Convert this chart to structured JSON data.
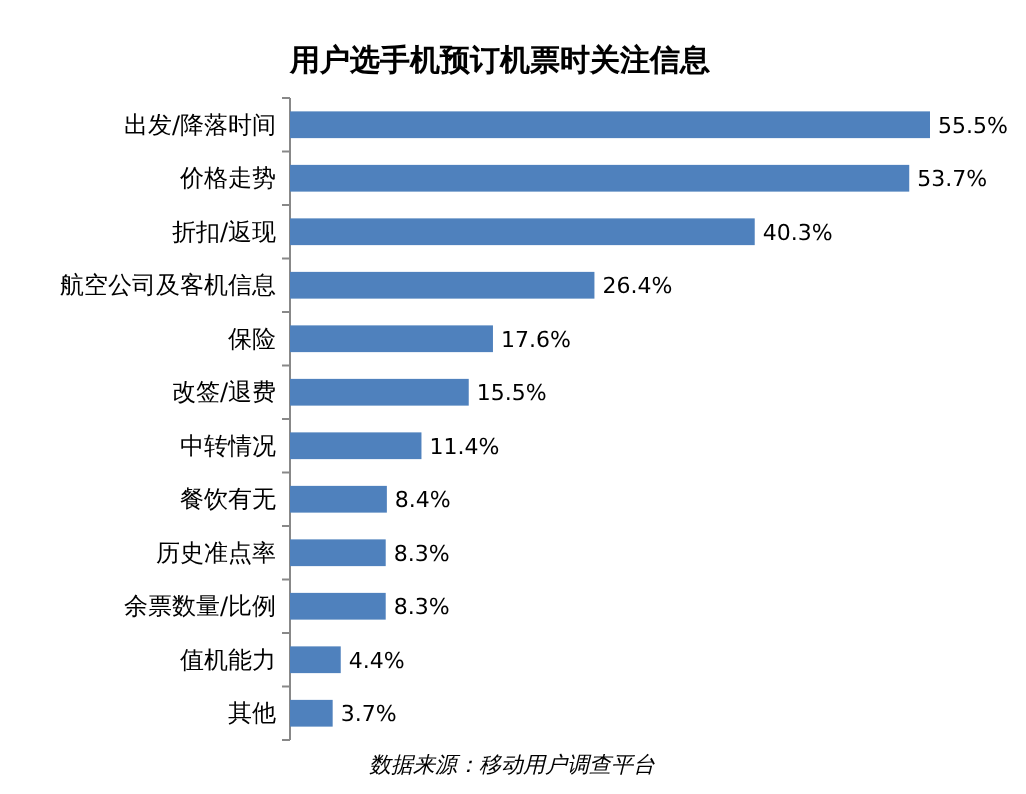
{
  "chart_data": {
    "type": "bar",
    "orientation": "horizontal",
    "title": "用户选手机预订机票时关注信息",
    "categories": [
      "出发/降落时间",
      "价格走势",
      "折扣/返现",
      "航空公司及客机信息",
      "保险",
      "改签/退费",
      "中转情况",
      "餐饮有无",
      "历史准点率",
      "余票数量/比例",
      "值机能力",
      "其他"
    ],
    "values": [
      55.5,
      53.7,
      40.3,
      26.4,
      17.6,
      15.5,
      11.4,
      8.4,
      8.3,
      8.3,
      4.4,
      3.7
    ],
    "color": "#4f81bd",
    "value_labels": [
      "55.5%",
      "53.7%",
      "40.3%",
      "26.4%",
      "17.6%",
      "15.5%",
      "11.4%",
      "8.4%",
      "8.3%",
      "8.3%",
      "4.4%",
      "3.7%"
    ],
    "annotations": [
      "数据来源：移动用户调查平台"
    ]
  }
}
